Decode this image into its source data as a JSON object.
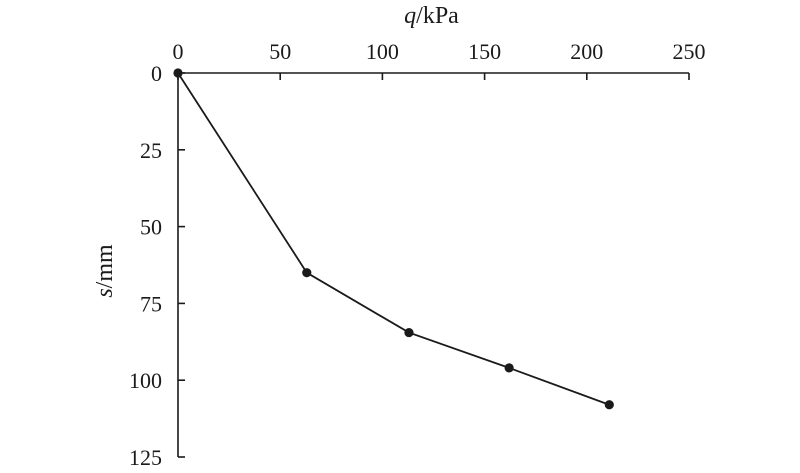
{
  "chart_data": {
    "type": "line",
    "x_axis": {
      "label_var": "q",
      "label_unit": "/kPa",
      "position": "top",
      "range": [
        0,
        250
      ],
      "ticks": [
        0,
        50,
        100,
        150,
        200,
        250
      ]
    },
    "y_axis": {
      "label_var": "s",
      "label_unit": "/mm",
      "inverted": true,
      "range": [
        0,
        125
      ],
      "ticks": [
        0,
        25,
        50,
        75,
        100,
        125
      ]
    },
    "series": [
      {
        "points": [
          {
            "x": 0,
            "y": 0
          },
          {
            "x": 63,
            "y": 65
          },
          {
            "x": 113,
            "y": 84.5
          },
          {
            "x": 162,
            "y": 96
          },
          {
            "x": 211,
            "y": 108
          }
        ]
      }
    ],
    "grid": false,
    "markers": "filled-circle"
  }
}
